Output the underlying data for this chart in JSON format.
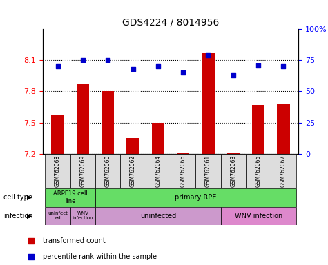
{
  "title": "GDS4224 / 8014956",
  "samples": [
    "GSM762068",
    "GSM762069",
    "GSM762060",
    "GSM762062",
    "GSM762064",
    "GSM762066",
    "GSM762061",
    "GSM762063",
    "GSM762065",
    "GSM762067"
  ],
  "transformed_count": [
    7.57,
    7.87,
    7.8,
    7.35,
    7.5,
    7.21,
    8.17,
    7.21,
    7.67,
    7.68
  ],
  "percentile_rank": [
    70,
    75,
    75,
    68,
    70,
    65,
    79,
    63,
    71,
    70
  ],
  "ylim_left": [
    7.2,
    8.4
  ],
  "ylim_right": [
    0,
    100
  ],
  "yticks_left": [
    7.2,
    7.5,
    7.8,
    8.1
  ],
  "yticks_right": [
    0,
    25,
    50,
    75,
    100
  ],
  "bar_color": "#cc0000",
  "dot_color": "#0000cc",
  "grid_color": "#000000",
  "cell_type_label": "cell type",
  "infection_label": "infection",
  "legend_items": [
    {
      "label": "transformed count",
      "color": "#cc0000"
    },
    {
      "label": "percentile rank within the sample",
      "color": "#0000cc"
    }
  ],
  "background_color": "#ffffff",
  "axes_bg": "#ffffff",
  "sample_bg": "#dddddd",
  "cell_type_color": "#66dd66",
  "infection_color_light": "#cc99cc",
  "infection_color_wnv": "#dd88cc"
}
